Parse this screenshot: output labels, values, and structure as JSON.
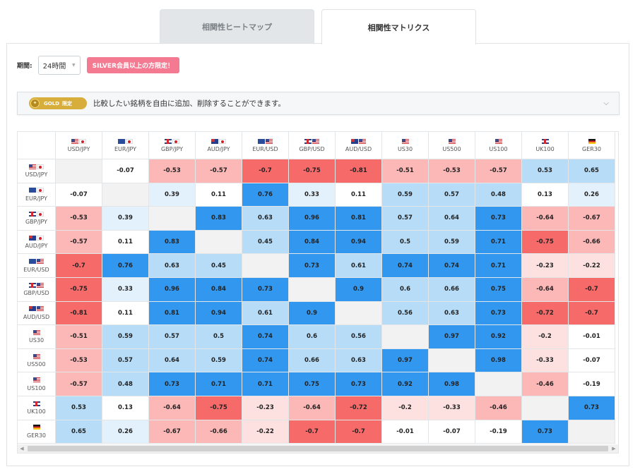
{
  "tabs": {
    "heatmap_label": "相関性ヒートマップ",
    "matrix_label": "相関性マトリクス"
  },
  "period": {
    "label": "期間:",
    "value": "24時間",
    "silver_notice": "SILVER会員以上の方限定！"
  },
  "gold_bar": {
    "badge_label": "GOLD",
    "badge_limit": "限定",
    "text": "比較したい銘柄を自由に追加、削除することができます。"
  },
  "colors": {
    "strong_positive": "#3298ef",
    "mid_positive": "#b6dcf8",
    "weak_positive": "#e3f1fd",
    "strong_negative": "#f76a6a",
    "mid_negative": "#fcb7b7",
    "weak_negative": "#fde0e0",
    "neutral": "#ffffff",
    "diagonal": "#f2f2f2"
  },
  "matrix": {
    "symbols": [
      "USD/JPY",
      "EUR/JPY",
      "GBP/JPY",
      "AUD/JPY",
      "EUR/USD",
      "GBP/USD",
      "AUD/USD",
      "US30",
      "US500",
      "US100",
      "UK100",
      "GER30"
    ],
    "flags": [
      [
        "us",
        "jp"
      ],
      [
        "eu",
        "jp"
      ],
      [
        "gb",
        "jp"
      ],
      [
        "au",
        "jp"
      ],
      [
        "eu",
        "us"
      ],
      [
        "gb",
        "us"
      ],
      [
        "au",
        "us"
      ],
      [
        "us"
      ],
      [
        "us"
      ],
      [
        "us"
      ],
      [
        "gb"
      ],
      [
        "de"
      ]
    ],
    "rows": [
      [
        "",
        "-0.07",
        "-0.53",
        "-0.57",
        "-0.7",
        "-0.75",
        "-0.81",
        "-0.51",
        "-0.53",
        "-0.57",
        "0.53",
        "0.65"
      ],
      [
        "-0.07",
        "",
        "0.39",
        "0.11",
        "0.76",
        "0.33",
        "0.11",
        "0.59",
        "0.57",
        "0.48",
        "0.13",
        "0.26"
      ],
      [
        "-0.53",
        "0.39",
        "",
        "0.83",
        "0.63",
        "0.96",
        "0.81",
        "0.57",
        "0.64",
        "0.73",
        "-0.64",
        "-0.67"
      ],
      [
        "-0.57",
        "0.11",
        "0.83",
        "",
        "0.45",
        "0.84",
        "0.94",
        "0.5",
        "0.59",
        "0.71",
        "-0.75",
        "-0.66"
      ],
      [
        "-0.7",
        "0.76",
        "0.63",
        "0.45",
        "",
        "0.73",
        "0.61",
        "0.74",
        "0.74",
        "0.71",
        "-0.23",
        "-0.22"
      ],
      [
        "-0.75",
        "0.33",
        "0.96",
        "0.84",
        "0.73",
        "",
        "0.9",
        "0.6",
        "0.66",
        "0.75",
        "-0.64",
        "-0.7"
      ],
      [
        "-0.81",
        "0.11",
        "0.81",
        "0.94",
        "0.61",
        "0.9",
        "",
        "0.56",
        "0.63",
        "0.73",
        "-0.72",
        "-0.7"
      ],
      [
        "-0.51",
        "0.59",
        "0.57",
        "0.5",
        "0.74",
        "0.6",
        "0.56",
        "",
        "0.97",
        "0.92",
        "-0.2",
        "-0.01"
      ],
      [
        "-0.53",
        "0.57",
        "0.64",
        "0.59",
        "0.74",
        "0.66",
        "0.63",
        "0.97",
        "",
        "0.98",
        "-0.33",
        "-0.07"
      ],
      [
        "-0.57",
        "0.48",
        "0.73",
        "0.71",
        "0.71",
        "0.75",
        "0.73",
        "0.92",
        "0.98",
        "",
        "-0.46",
        "-0.19"
      ],
      [
        "0.53",
        "0.13",
        "-0.64",
        "-0.75",
        "-0.23",
        "-0.64",
        "-0.72",
        "-0.2",
        "-0.33",
        "-0.46",
        "",
        "0.73"
      ],
      [
        "0.65",
        "0.26",
        "-0.67",
        "-0.66",
        "-0.22",
        "-0.7",
        "-0.7",
        "-0.01",
        "-0.07",
        "-0.19",
        "0.73",
        ""
      ]
    ]
  }
}
